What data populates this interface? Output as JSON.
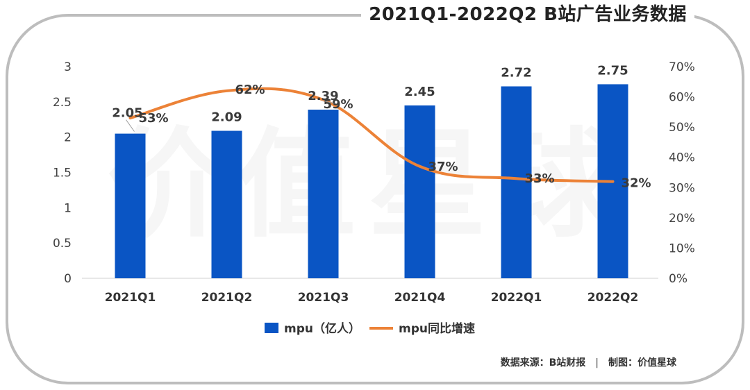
{
  "title": "2021Q1-2022Q2 B站广告业务数据",
  "watermark": "价值星球",
  "footer": {
    "source": "数据来源：B站财报",
    "made_by": "制图：价值星球"
  },
  "colors": {
    "bar": "#0a55c4",
    "line": "#ec8237",
    "frame": "#bdbdbd"
  },
  "chart_data": {
    "type": "bar",
    "categories": [
      "2021Q1",
      "2021Q2",
      "2021Q3",
      "2021Q4",
      "2022Q1",
      "2022Q2"
    ],
    "series": [
      {
        "name": "mpu（亿人）",
        "type": "bar",
        "axis": "left",
        "values": [
          2.05,
          2.09,
          2.39,
          2.45,
          2.72,
          2.75
        ],
        "labels": [
          "2.05",
          "2.09",
          "2.39",
          "2.45",
          "2.72",
          "2.75"
        ]
      },
      {
        "name": "mpu同比增速",
        "type": "line",
        "axis": "right",
        "values": [
          53,
          62,
          59,
          37,
          33,
          32
        ],
        "labels": [
          "53%",
          "62%",
          "59%",
          "37%",
          "33%",
          "32%"
        ]
      }
    ],
    "y_left": {
      "range": [
        0,
        3
      ],
      "ticks": [
        "0",
        "0.5",
        "1",
        "1.5",
        "2",
        "2.5",
        "3"
      ]
    },
    "y_right": {
      "range": [
        0,
        70
      ],
      "unit": "%",
      "ticks": [
        "0%",
        "10%",
        "20%",
        "30%",
        "40%",
        "50%",
        "60%",
        "70%"
      ]
    },
    "legend": "bottom",
    "grid": false
  }
}
